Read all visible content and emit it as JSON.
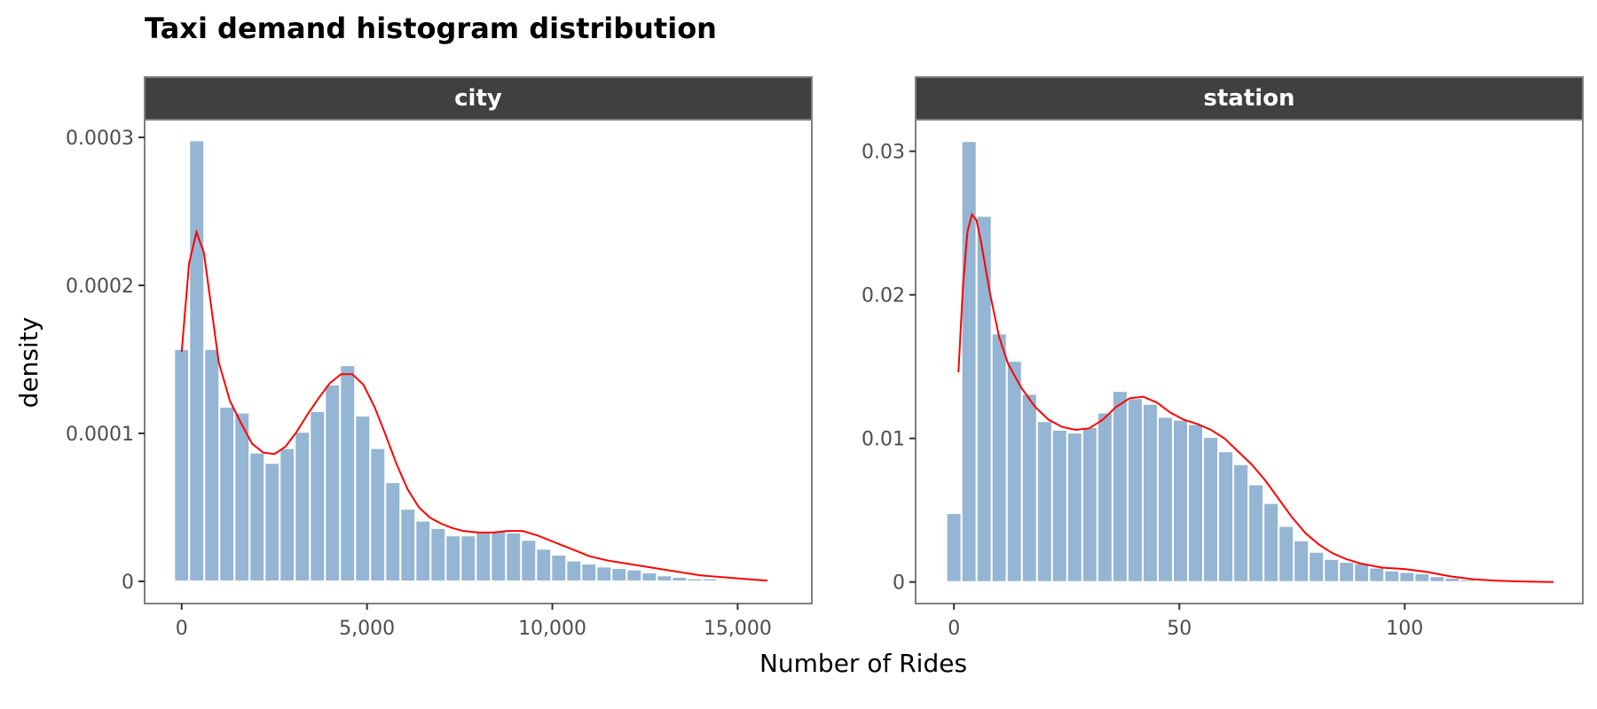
{
  "chart_data": {
    "type": "histogram",
    "title": "Taxi demand histogram distribution",
    "xlabel": "Number of Rides",
    "ylabel": "density",
    "colors": {
      "bar": "#94b5d3",
      "kde": "#ff0000",
      "strip": "#404040"
    },
    "panels": [
      {
        "name": "city",
        "xlim": [
          -1000,
          17000
        ],
        "ylim": [
          -1.5e-05,
          0.000312
        ],
        "x_ticks": [
          0,
          5000,
          10000,
          15000
        ],
        "x_tick_labels": [
          "0",
          "5,000",
          "10,000",
          "15,000"
        ],
        "y_ticks": [
          0,
          0.0001,
          0.0002,
          0.0003
        ],
        "y_tick_labels": [
          "0",
          "0.0001",
          "0.0002",
          "0.0003"
        ],
        "bin_width": 407,
        "bin_start": -204,
        "values": [
          0.000157,
          0.000298,
          0.000157,
          0.000118,
          0.000114,
          8.7e-05,
          8e-05,
          9e-05,
          0.000101,
          0.000115,
          0.000133,
          0.000146,
          0.000112,
          9e-05,
          6.7e-05,
          4.9e-05,
          4.1e-05,
          3.6e-05,
          3.1e-05,
          3.1e-05,
          3.3e-05,
          3.4e-05,
          3.3e-05,
          2.8e-05,
          2.2e-05,
          1.8e-05,
          1.4e-05,
          1.2e-05,
          1e-05,
          9e-06,
          8e-06,
          6e-06,
          4e-06,
          3e-06,
          2e-06,
          2e-06,
          1e-06,
          1e-06,
          5e-07,
          3e-07
        ],
        "kde": {
          "x": [
            0,
            200,
            400,
            600,
            800,
            1000,
            1300,
            1600,
            1900,
            2200,
            2500,
            2800,
            3100,
            3400,
            3700,
            4000,
            4300,
            4600,
            4900,
            5200,
            5500,
            5800,
            6100,
            6400,
            6700,
            7000,
            7300,
            7600,
            8000,
            8400,
            8800,
            9200,
            9600,
            10000,
            10500,
            11000,
            11500,
            12000,
            12500,
            13000,
            13500,
            14000,
            14500,
            15000,
            15500,
            15800
          ],
          "y": [
            0.000155,
            0.000215,
            0.000236,
            0.000222,
            0.000185,
            0.000148,
            0.000122,
            0.000107,
            9.3e-05,
            8.7e-05,
            8.6e-05,
            9.1e-05,
            0.000101,
            0.000113,
            0.000124,
            0.000134,
            0.00014,
            0.00014,
            0.000133,
            0.000118,
            9.9e-05,
            7.9e-05,
            6.2e-05,
            5e-05,
            4.3e-05,
            3.9e-05,
            3.6e-05,
            3.4e-05,
            3.3e-05,
            3.3e-05,
            3.4e-05,
            3.4e-05,
            3.1e-05,
            2.7e-05,
            2.2e-05,
            1.7e-05,
            1.4e-05,
            1.2e-05,
            1e-05,
            8e-06,
            6e-06,
            4e-06,
            3e-06,
            2e-06,
            1e-06,
            5e-07
          ]
        }
      },
      {
        "name": "station",
        "xlim": [
          -8.5,
          139.5
        ],
        "ylim": [
          -0.0015,
          0.0322
        ],
        "x_ticks": [
          0,
          50,
          100
        ],
        "x_tick_labels": [
          "0",
          "50",
          "100"
        ],
        "y_ticks": [
          0,
          0.01,
          0.02,
          0.03
        ],
        "y_tick_labels": [
          "0",
          "0.01",
          "0.02",
          "0.03"
        ],
        "bin_width": 3.35,
        "bin_start": -1.675,
        "values": [
          0.0048,
          0.0307,
          0.0255,
          0.0173,
          0.0154,
          0.0131,
          0.0112,
          0.0106,
          0.0104,
          0.0108,
          0.0118,
          0.0133,
          0.0128,
          0.0124,
          0.0115,
          0.0113,
          0.011,
          0.0101,
          0.0091,
          0.0082,
          0.0068,
          0.0055,
          0.0039,
          0.0029,
          0.0021,
          0.0016,
          0.0014,
          0.0013,
          0.001,
          0.0008,
          0.0007,
          0.0006,
          0.0004,
          0.0003,
          0.0002,
          0.0001,
          0.0001,
          5e-05,
          3e-05,
          2e-05
        ],
        "kde": {
          "x": [
            1,
            2,
            3,
            4,
            5,
            6,
            8,
            10,
            12,
            15,
            18,
            21,
            24,
            27,
            30,
            33,
            36,
            39,
            42,
            45,
            48,
            51,
            54,
            57,
            60,
            63,
            66,
            69,
            72,
            75,
            78,
            81,
            84,
            87,
            90,
            95,
            100,
            105,
            110,
            115,
            120,
            125,
            130,
            133
          ],
          "y": [
            0.0146,
            0.0206,
            0.0244,
            0.0256,
            0.0252,
            0.0237,
            0.0201,
            0.0171,
            0.0152,
            0.0135,
            0.0122,
            0.0113,
            0.0108,
            0.0106,
            0.0107,
            0.0113,
            0.0122,
            0.0128,
            0.0129,
            0.0125,
            0.0118,
            0.0113,
            0.011,
            0.0106,
            0.01,
            0.0091,
            0.0082,
            0.0071,
            0.0058,
            0.0045,
            0.0034,
            0.0026,
            0.002,
            0.0016,
            0.0013,
            0.001,
            0.0009,
            0.0007,
            0.0004,
            0.0002,
            0.0001,
            4e-05,
            1e-05,
            0.0
          ]
        }
      }
    ]
  }
}
